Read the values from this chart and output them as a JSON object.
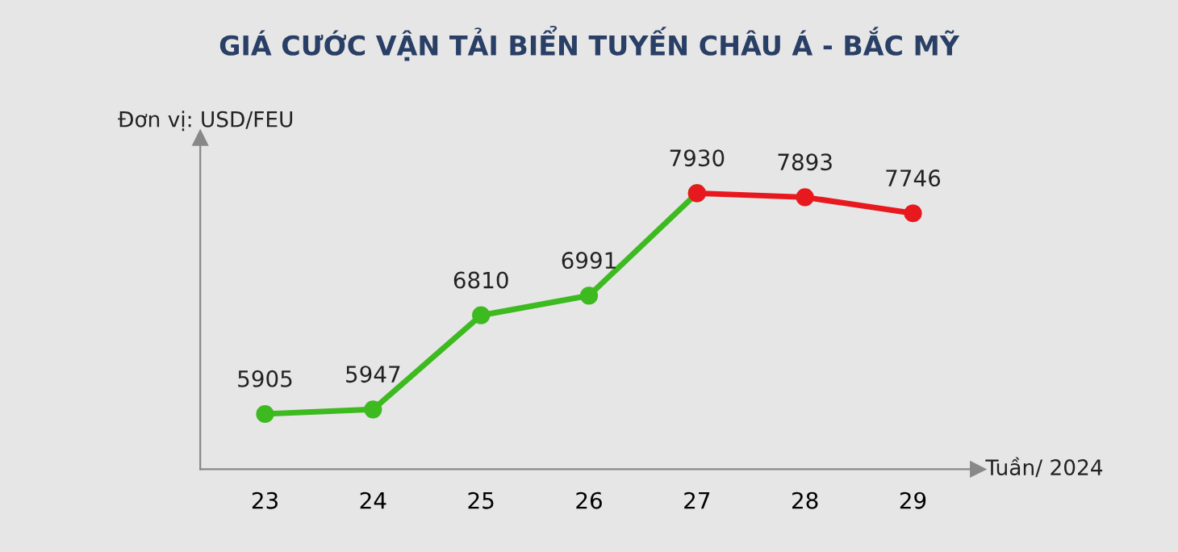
{
  "chart_data": {
    "type": "line",
    "title": "GIÁ CƯỚC VẬN TẢI BIỂN TUYẾN CHÂU Á - BẮC MỸ",
    "ylabel": "Đơn vị: USD/FEU",
    "xlabel": "Tuần/ 2024",
    "categories": [
      "23",
      "24",
      "25",
      "26",
      "27",
      "28",
      "29"
    ],
    "series": [
      {
        "color": "#3dba1f",
        "values": [
          5905,
          5947,
          6810,
          6991,
          7930,
          null,
          null
        ],
        "value_labels": [
          "5905",
          "5947",
          "6810",
          "6991",
          "7930",
          null,
          null
        ]
      },
      {
        "color": "#e8191e",
        "values": [
          null,
          null,
          null,
          null,
          7930,
          7893,
          7746
        ],
        "value_labels": [
          null,
          null,
          null,
          null,
          null,
          "7893",
          "7746"
        ]
      }
    ],
    "marker": "circle",
    "line_style": "solid",
    "grid": false,
    "legend": false,
    "tick_labels": "x"
  }
}
